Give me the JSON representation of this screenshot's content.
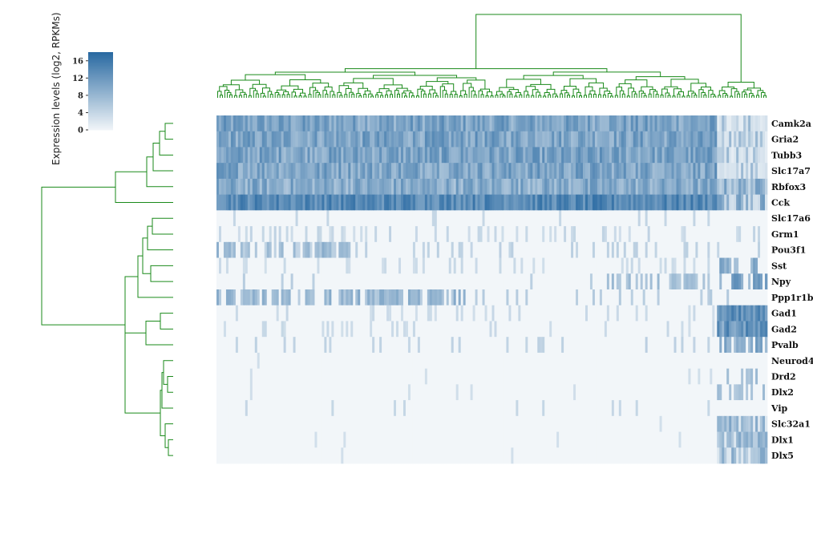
{
  "chart_data": {
    "type": "heatmap",
    "title": "",
    "colorbar": {
      "label": "Expression levels (log2, RPKMs)",
      "ticks": [
        0,
        4,
        8,
        12,
        16
      ],
      "range": [
        0,
        18
      ],
      "colors": [
        "#f2f6f9",
        "#2a6aa2"
      ]
    },
    "genes": [
      "Camk2a",
      "Gria2",
      "Tubb3",
      "Slc17a7",
      "Rbfox3",
      "Cck",
      "Slc17a6",
      "Grm1",
      "Pou3f1",
      "Sst",
      "Npy",
      "Ppp1r1b",
      "Gad1",
      "Gad2",
      "Pvalb",
      "Neurod4",
      "Drd2",
      "Dlx2",
      "Vip",
      "Slc32a1",
      "Dlx1",
      "Dlx5"
    ],
    "n_cells": 230,
    "row_dendrogram_order": [
      "Camk2a",
      "Gria2",
      "Tubb3",
      "Slc17a7",
      "Rbfox3",
      "Cck",
      "Slc17a6",
      "Grm1",
      "Pou3f1",
      "Sst",
      "Npy",
      "Ppp1r1b",
      "Gad1",
      "Gad2",
      "Pvalb",
      "Neurod4",
      "Drd2",
      "Dlx2",
      "Vip",
      "Slc32a1",
      "Dlx1",
      "Dlx5"
    ],
    "dendrogram_color": "#1a8a1a",
    "grid": false
  }
}
